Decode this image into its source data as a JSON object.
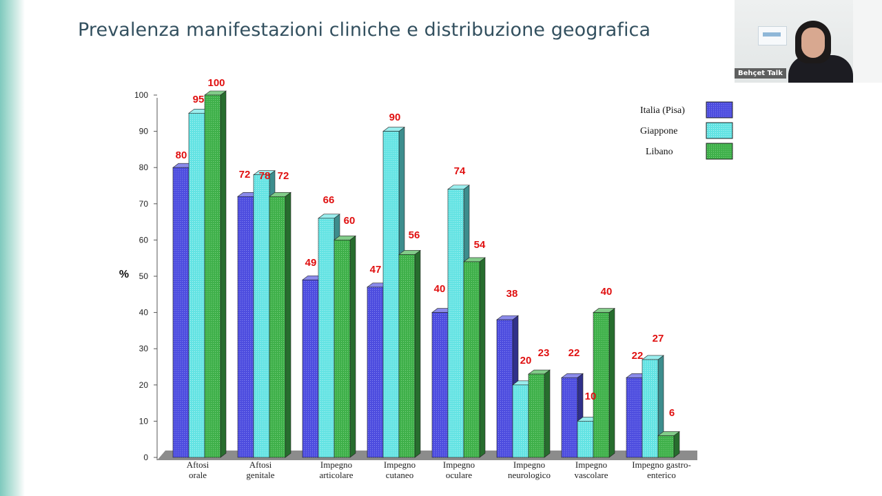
{
  "slide": {
    "title": "Prevalenza manifestazioni cliniche e distribuzione geografica"
  },
  "video": {
    "label": "Behçet Talk"
  },
  "chart_data": {
    "type": "bar",
    "title": "",
    "xlabel": "",
    "ylabel": "%",
    "ylim": [
      0,
      100
    ],
    "yticks": [
      0,
      10,
      20,
      30,
      40,
      50,
      60,
      70,
      80,
      90,
      100
    ],
    "grid": false,
    "legend_position": "top-right",
    "categories": [
      [
        "Aftosi",
        "orale"
      ],
      [
        "Aftosi",
        "genitale"
      ],
      [
        "Impegno",
        "articolare"
      ],
      [
        "Impegno",
        "cutaneo"
      ],
      [
        "Impegno",
        "oculare"
      ],
      [
        "Impegno",
        "neurologico"
      ],
      [
        "Impegno",
        "vascolare"
      ],
      [
        "Impegno gastro-",
        "enterico"
      ]
    ],
    "series": [
      {
        "name": "Italia (Pisa)",
        "color": "#4d4ddf",
        "values": [
          80,
          72,
          49,
          47,
          40,
          38,
          22,
          22
        ]
      },
      {
        "name": "Giappone",
        "color": "#63e3e3",
        "values": [
          95,
          78,
          66,
          90,
          74,
          20,
          10,
          27
        ]
      },
      {
        "name": "Libano",
        "color": "#3fb04a",
        "values": [
          100,
          72,
          60,
          56,
          54,
          23,
          40,
          6
        ]
      }
    ],
    "data_labels": [
      [
        "80",
        "72",
        "49",
        "47",
        "40",
        "38",
        "22",
        "22"
      ],
      [
        "95",
        "78",
        "66",
        "90",
        "74",
        "20",
        "10",
        "27"
      ],
      [
        "100",
        "72",
        "60",
        "56",
        "54",
        "23",
        "40",
        "6"
      ]
    ],
    "label_color": "#e01010"
  }
}
